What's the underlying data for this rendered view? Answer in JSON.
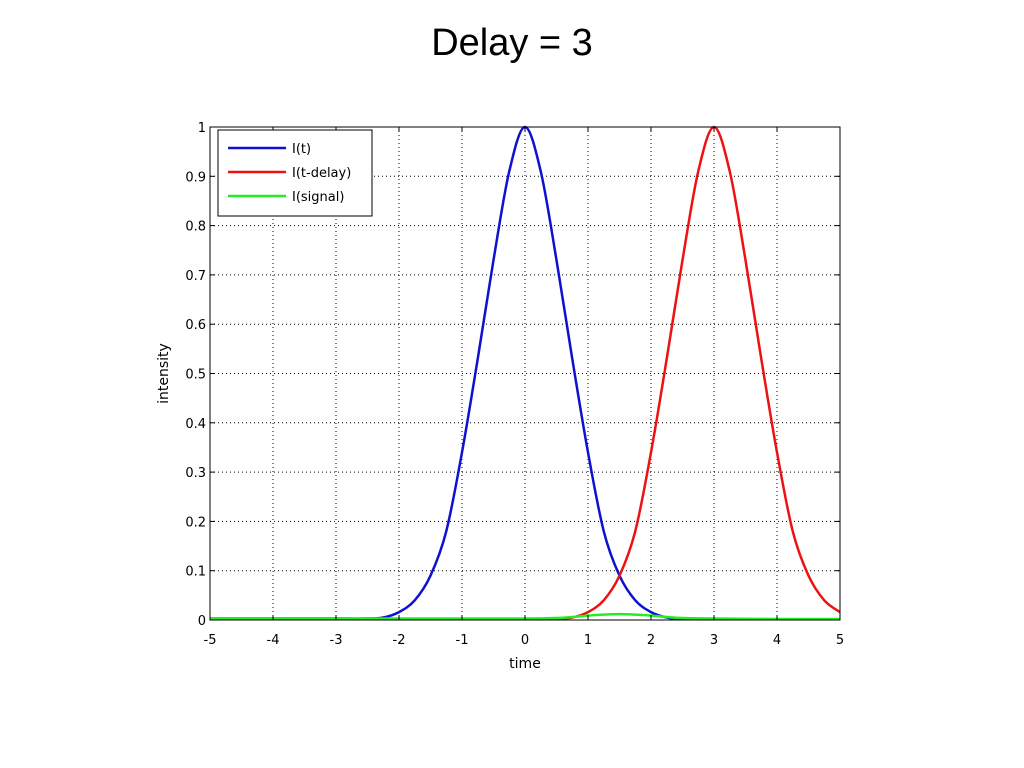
{
  "slide": {
    "title": "Delay = 3"
  },
  "chart_data": {
    "type": "line",
    "title": "",
    "xlabel": "time",
    "ylabel": "intensity",
    "xlim": [
      -5,
      5
    ],
    "ylim": [
      0,
      1
    ],
    "xticks": [
      -5,
      -4,
      -3,
      -2,
      -1,
      0,
      1,
      2,
      3,
      4,
      5
    ],
    "yticks": [
      0,
      0.1,
      0.2,
      0.3,
      0.4,
      0.5,
      0.6,
      0.7,
      0.8,
      0.9,
      1
    ],
    "ytick_labels": [
      "0",
      "0.1",
      "0.2",
      "0.3",
      "0.4",
      "0.5",
      "0.6",
      "0.7",
      "0.8",
      "0.9",
      "1"
    ],
    "grid": true,
    "legend_position": "top-left",
    "series": [
      {
        "name": "I(t)",
        "color": "#1010d0",
        "x": [
          -5,
          -3,
          -2.5,
          -2.25,
          -2,
          -1.75,
          -1.5,
          -1.25,
          -1,
          -0.75,
          -0.5,
          -0.25,
          0,
          0.25,
          0.5,
          0.75,
          1,
          1.25,
          1.5,
          1.75,
          2,
          2.25,
          2.5,
          3,
          5
        ],
        "y": [
          0.003,
          0.003,
          0.003,
          0.005,
          0.016,
          0.04,
          0.09,
          0.18,
          0.34,
          0.53,
          0.73,
          0.91,
          1,
          0.91,
          0.73,
          0.53,
          0.34,
          0.18,
          0.09,
          0.04,
          0.016,
          0.005,
          0.002,
          0.001,
          0.001
        ]
      },
      {
        "name": "I(t-delay)",
        "color": "#ee1111",
        "x": [
          -5,
          -3,
          -2.5,
          0,
          0.5,
          0.75,
          1,
          1.25,
          1.5,
          1.75,
          2,
          2.25,
          2.5,
          2.75,
          3,
          3.25,
          3.5,
          3.75,
          4,
          4.25,
          4.5,
          4.75,
          5
        ],
        "y": [
          0.001,
          0.001,
          0.002,
          0.002,
          0.003,
          0.005,
          0.016,
          0.04,
          0.09,
          0.18,
          0.34,
          0.53,
          0.73,
          0.91,
          1,
          0.91,
          0.73,
          0.53,
          0.34,
          0.18,
          0.09,
          0.04,
          0.016
        ]
      },
      {
        "name": "I(signal)",
        "color": "#22ee22",
        "x": [
          -5,
          -3,
          -2,
          -1,
          0,
          0.5,
          0.75,
          1,
          1.25,
          1.5,
          1.75,
          2,
          2.25,
          2.5,
          3,
          4,
          5
        ],
        "y": [
          0.003,
          0.003,
          0.003,
          0.003,
          0.003,
          0.004,
          0.006,
          0.009,
          0.011,
          0.012,
          0.011,
          0.009,
          0.006,
          0.004,
          0.003,
          0.002,
          0.002
        ]
      }
    ]
  }
}
